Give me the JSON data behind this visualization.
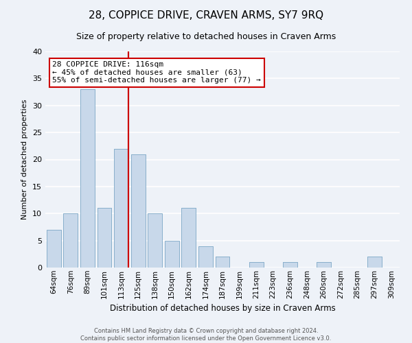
{
  "title": "28, COPPICE DRIVE, CRAVEN ARMS, SY7 9RQ",
  "subtitle": "Size of property relative to detached houses in Craven Arms",
  "xlabel": "Distribution of detached houses by size in Craven Arms",
  "ylabel": "Number of detached properties",
  "bar_labels": [
    "64sqm",
    "76sqm",
    "89sqm",
    "101sqm",
    "113sqm",
    "125sqm",
    "138sqm",
    "150sqm",
    "162sqm",
    "174sqm",
    "187sqm",
    "199sqm",
    "211sqm",
    "223sqm",
    "236sqm",
    "248sqm",
    "260sqm",
    "272sqm",
    "285sqm",
    "297sqm",
    "309sqm"
  ],
  "bar_values": [
    7,
    10,
    33,
    11,
    22,
    21,
    10,
    5,
    11,
    4,
    2,
    0,
    1,
    0,
    1,
    0,
    1,
    0,
    0,
    2,
    0
  ],
  "bar_color": "#c8d8ea",
  "bar_edge_color": "#8ab0cc",
  "vline_x_idx": 4.0,
  "vline_color": "#cc0000",
  "ylim": [
    0,
    40
  ],
  "yticks": [
    0,
    5,
    10,
    15,
    20,
    25,
    30,
    35,
    40
  ],
  "annotation_title": "28 COPPICE DRIVE: 116sqm",
  "annotation_line1": "← 45% of detached houses are smaller (63)",
  "annotation_line2": "55% of semi-detached houses are larger (77) →",
  "annotation_box_color": "#ffffff",
  "annotation_box_edge": "#cc0000",
  "footer_line1": "Contains HM Land Registry data © Crown copyright and database right 2024.",
  "footer_line2": "Contains public sector information licensed under the Open Government Licence v3.0.",
  "background_color": "#eef2f8",
  "grid_color": "#ffffff",
  "title_fontsize": 11,
  "subtitle_fontsize": 9
}
